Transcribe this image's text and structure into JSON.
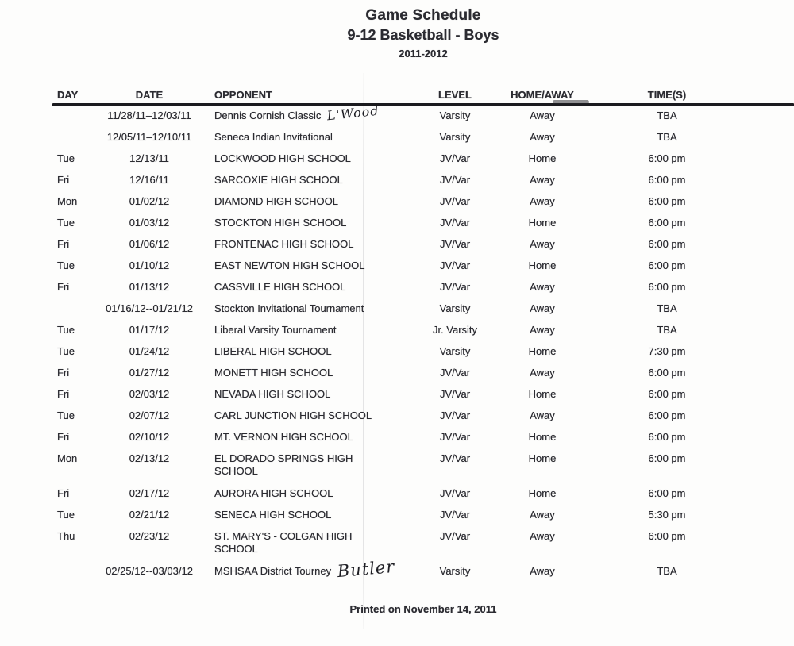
{
  "page": {
    "title": "Game Schedule",
    "subtitle": "9-12 Basketball - Boys",
    "season": "2011-2012",
    "footer": "Printed on November 14, 2011"
  },
  "colors": {
    "text": "#2b2b31",
    "header_rule": "#1b1b1f",
    "background": "#fdfdfc",
    "scan_artifact": "#8a8a8d"
  },
  "table": {
    "headers": {
      "day": "DAY",
      "date": "DATE",
      "opponent": "OPPONENT",
      "level": "LEVEL",
      "home_away": "HOME/AWAY",
      "times": "TIME(S)"
    },
    "rows": [
      {
        "day": "",
        "date": "11/28/11–12/03/11",
        "opponent": "Dennis Cornish Classic",
        "annotation": "L'Wood",
        "level": "Varsity",
        "home_away": "Away",
        "time": "TBA"
      },
      {
        "day": "",
        "date": "12/05/11–12/10/11",
        "opponent": "Seneca Indian Invitational",
        "level": "Varsity",
        "home_away": "Away",
        "time": "TBA"
      },
      {
        "day": "Tue",
        "date": "12/13/11",
        "opponent": "LOCKWOOD HIGH SCHOOL",
        "level": "JV/Var",
        "home_away": "Home",
        "time": "6:00 pm"
      },
      {
        "day": "Fri",
        "date": "12/16/11",
        "opponent": "SARCOXIE HIGH SCHOOL",
        "level": "JV/Var",
        "home_away": "Away",
        "time": "6:00 pm"
      },
      {
        "day": "Mon",
        "date": "01/02/12",
        "opponent": "DIAMOND HIGH SCHOOL",
        "level": "JV/Var",
        "home_away": "Away",
        "time": "6:00 pm"
      },
      {
        "day": "Tue",
        "date": "01/03/12",
        "opponent": "STOCKTON HIGH SCHOOL",
        "level": "JV/Var",
        "home_away": "Home",
        "time": "6:00 pm"
      },
      {
        "day": "Fri",
        "date": "01/06/12",
        "opponent": "FRONTENAC HIGH SCHOOL",
        "level": "JV/Var",
        "home_away": "Away",
        "time": "6:00 pm"
      },
      {
        "day": "Tue",
        "date": "01/10/12",
        "opponent": "EAST NEWTON HIGH SCHOOL",
        "level": "JV/Var",
        "home_away": "Home",
        "time": "6:00 pm"
      },
      {
        "day": "Fri",
        "date": "01/13/12",
        "opponent": "CASSVILLE HIGH SCHOOL",
        "level": "JV/Var",
        "home_away": "Away",
        "time": "6:00 pm"
      },
      {
        "day": "",
        "date": "01/16/12--01/21/12",
        "opponent": "Stockton Invitational Tournament",
        "level": "Varsity",
        "home_away": "Away",
        "time": "TBA"
      },
      {
        "day": "Tue",
        "date": "01/17/12",
        "opponent": "Liberal Varsity Tournament",
        "level": "Jr. Varsity",
        "home_away": "Away",
        "time": "TBA"
      },
      {
        "day": "Tue",
        "date": "01/24/12",
        "opponent": "LIBERAL HIGH SCHOOL",
        "level": "Varsity",
        "home_away": "Home",
        "time": "7:30 pm"
      },
      {
        "day": "Fri",
        "date": "01/27/12",
        "opponent": "MONETT HIGH SCHOOL",
        "level": "JV/Var",
        "home_away": "Away",
        "time": "6:00 pm"
      },
      {
        "day": "Fri",
        "date": "02/03/12",
        "opponent": "NEVADA HIGH SCHOOL",
        "level": "JV/Var",
        "home_away": "Home",
        "time": "6:00 pm"
      },
      {
        "day": "Tue",
        "date": "02/07/12",
        "opponent": "CARL JUNCTION HIGH SCHOOL",
        "level": "JV/Var",
        "home_away": "Away",
        "time": "6:00 pm"
      },
      {
        "day": "Fri",
        "date": "02/10/12",
        "opponent": "MT. VERNON HIGH SCHOOL",
        "level": "JV/Var",
        "home_away": "Home",
        "time": "6:00 pm"
      },
      {
        "day": "Mon",
        "date": "02/13/12",
        "opponent": "EL DORADO SPRINGS HIGH SCHOOL",
        "two_line": true,
        "level": "JV/Var",
        "home_away": "Home",
        "time": "6:00 pm"
      },
      {
        "day": "Fri",
        "date": "02/17/12",
        "opponent": "AURORA HIGH SCHOOL",
        "level": "JV/Var",
        "home_away": "Home",
        "time": "6:00 pm"
      },
      {
        "day": "Tue",
        "date": "02/21/12",
        "opponent": "SENECA HIGH SCHOOL",
        "level": "JV/Var",
        "home_away": "Away",
        "time": "5:30 pm"
      },
      {
        "day": "Thu",
        "date": "02/23/12",
        "opponent": "ST. MARY'S - COLGAN HIGH SCHOOL",
        "two_line": true,
        "level": "JV/Var",
        "home_away": "Away",
        "time": "6:00 pm"
      },
      {
        "day": "",
        "date": "02/25/12--03/03/12",
        "opponent": "MSHSAA District Tourney",
        "annotation": "Butler",
        "level": "Varsity",
        "home_away": "Away",
        "time": "TBA"
      }
    ]
  }
}
